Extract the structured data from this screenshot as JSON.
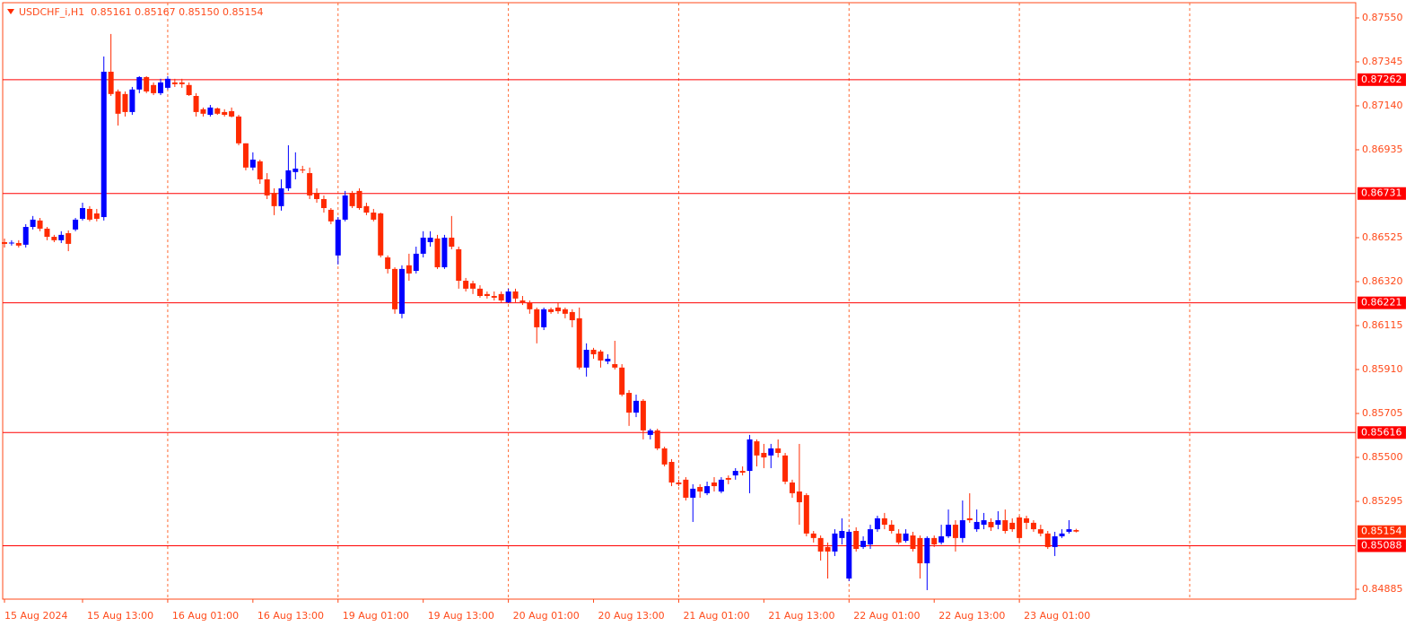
{
  "chart_data": {
    "type": "candlestick",
    "title": "USDCHF_i,H1  0.85161 0.85167 0.85150 0.85154",
    "categories": [
      "15 Aug 2024",
      null,
      null,
      null,
      null,
      null,
      null,
      null,
      null,
      null,
      null,
      "15 Aug 13:00",
      null,
      null,
      null,
      null,
      null,
      null,
      null,
      null,
      null,
      null,
      null,
      "16 Aug 01:00",
      null,
      null,
      null,
      null,
      null,
      null,
      null,
      null,
      null,
      null,
      null,
      "16 Aug 13:00",
      null,
      null,
      null,
      null,
      null,
      null,
      null,
      null,
      null,
      null,
      null,
      "19 Aug 01:00",
      null,
      null,
      null,
      null,
      null,
      null,
      null,
      null,
      null,
      null,
      null,
      "19 Aug 13:00",
      null,
      null,
      null,
      null,
      null,
      null,
      null,
      null,
      null,
      null,
      null,
      "20 Aug 01:00",
      null,
      null,
      null,
      null,
      null,
      null,
      null,
      null,
      null,
      null,
      null,
      "20 Aug 13:00",
      null,
      null,
      null,
      null,
      null,
      null,
      null,
      null,
      null,
      null,
      null,
      "21 Aug 01:00",
      null,
      null,
      null,
      null,
      null,
      null,
      null,
      null,
      null,
      null,
      null,
      "21 Aug 13:00",
      null,
      null,
      null,
      null,
      null,
      null,
      null,
      null,
      null,
      null,
      null,
      "22 Aug 01:00",
      null,
      null,
      null,
      null,
      null,
      null,
      null,
      null,
      null,
      null,
      null,
      "22 Aug 13:00",
      null,
      null,
      null,
      null,
      null,
      null,
      null,
      null,
      null,
      null,
      null,
      "23 Aug 01:00",
      null,
      null,
      null,
      null,
      null,
      null,
      null,
      null
    ],
    "open": [
      0.86504,
      0.865,
      0.865,
      0.86492,
      0.86575,
      0.86605,
      0.86567,
      0.86529,
      0.86513,
      0.86546,
      0.86563,
      0.86613,
      0.86659,
      0.86638,
      0.86621,
      0.87299,
      0.87207,
      0.87195,
      0.87111,
      0.87216,
      0.87274,
      0.87237,
      0.87199,
      0.87224,
      0.87249,
      0.87249,
      0.87237,
      0.87186,
      0.87124,
      0.87098,
      0.87128,
      0.87111,
      0.87115,
      0.8709,
      0.86965,
      0.86852,
      0.86881,
      0.86797,
      0.86734,
      0.86672,
      0.86755,
      0.86831,
      0.86843,
      0.86826,
      0.86734,
      0.86705,
      0.86655,
      0.86442,
      0.86609,
      0.86734,
      0.86743,
      0.86672,
      0.86642,
      0.86638,
      0.86433,
      0.86379,
      0.8617,
      0.86396,
      0.8637,
      0.8645,
      0.86504,
      0.86521,
      0.86387,
      0.86525,
      0.86471,
      0.86324,
      0.86312,
      0.86287,
      0.86262,
      0.86253,
      0.86262,
      0.86224,
      0.86274,
      0.86232,
      0.8622,
      0.86191,
      0.86107,
      0.86191,
      0.86199,
      0.86191,
      0.86178,
      0.86149,
      0.85919,
      0.86002,
      0.85994,
      0.85948,
      0.85935,
      0.85919,
      0.85801,
      0.85709,
      0.85764,
      0.85605,
      0.85626,
      0.85542,
      0.85479,
      0.85383,
      0.85396,
      0.85312,
      0.85362,
      0.85333,
      0.85383,
      0.85341,
      0.85404,
      0.85416,
      0.85437,
      0.85437,
      0.85575,
      0.85521,
      0.85509,
      0.85542,
      0.85509,
      0.85383,
      0.85341,
      0.85324,
      0.85145,
      0.85124,
      0.85082,
      0.85061,
      0.85124,
      0.84935,
      0.85157,
      0.85082,
      0.85094,
      0.85165,
      0.85216,
      0.85186,
      0.85145,
      0.85111,
      0.85136,
      0.85124,
      0.85006,
      0.85124,
      0.85103,
      0.85132,
      0.85186,
      0.85124,
      0.85216,
      0.85165,
      0.85186,
      0.85199,
      0.85186,
      0.85207,
      0.85195,
      0.8522,
      0.85216,
      0.85195,
      0.85165,
      0.85145,
      0.85082,
      0.85132,
      0.85153,
      0.85161
    ],
    "high": [
      0.86521,
      0.86513,
      0.86513,
      0.86588,
      0.86626,
      0.86617,
      0.86575,
      0.86538,
      0.86555,
      0.86559,
      0.86617,
      0.86688,
      0.86672,
      0.86659,
      0.8737,
      0.87475,
      0.87216,
      0.87207,
      0.87228,
      0.87278,
      0.87278,
      0.87249,
      0.87266,
      0.87278,
      0.87266,
      0.87266,
      0.87249,
      0.87199,
      0.87132,
      0.87144,
      0.87132,
      0.87124,
      0.87132,
      0.87098,
      0.86965,
      0.86923,
      0.86889,
      0.86826,
      0.86755,
      0.86797,
      0.86956,
      0.86923,
      0.8686,
      0.86852,
      0.86755,
      0.86722,
      0.86663,
      0.86621,
      0.86743,
      0.86743,
      0.86755,
      0.86688,
      0.86659,
      0.86642,
      0.86442,
      0.86387,
      0.86396,
      0.8645,
      0.86483,
      0.86555,
      0.86555,
      0.86538,
      0.86538,
      0.86626,
      0.86483,
      0.86337,
      0.86324,
      0.86303,
      0.86274,
      0.86274,
      0.86274,
      0.86287,
      0.86287,
      0.86253,
      0.86232,
      0.86199,
      0.86199,
      0.86199,
      0.86224,
      0.86199,
      0.86191,
      0.86199,
      0.86032,
      0.86011,
      0.86002,
      0.85981,
      0.86044,
      0.85935,
      0.85814,
      0.85793,
      0.85772,
      0.85634,
      0.85634,
      0.8555,
      0.85492,
      0.85396,
      0.85408,
      0.85375,
      0.85375,
      0.85387,
      0.85408,
      0.85408,
      0.85416,
      0.8545,
      0.85458,
      0.85605,
      0.85584,
      0.85563,
      0.85563,
      0.85584,
      0.85521,
      0.85396,
      0.85563,
      0.85333,
      0.85157,
      0.85136,
      0.85103,
      0.85165,
      0.85216,
      0.85165,
      0.85174,
      0.85132,
      0.85186,
      0.85228,
      0.85241,
      0.85207,
      0.85165,
      0.85165,
      0.85153,
      0.85136,
      0.85132,
      0.85136,
      0.85186,
      0.85257,
      0.85207,
      0.85299,
      0.85333,
      0.85257,
      0.85241,
      0.85216,
      0.85249,
      0.85257,
      0.85216,
      0.85228,
      0.85228,
      0.85207,
      0.85186,
      0.85157,
      0.85153,
      0.85165,
      0.85207,
      0.85167
    ],
    "low": [
      0.86479,
      0.86488,
      0.86479,
      0.86479,
      0.86563,
      0.86555,
      0.86513,
      0.86504,
      0.865,
      0.86462,
      0.86555,
      0.86605,
      0.86601,
      0.86601,
      0.86605,
      0.87186,
      0.87048,
      0.8709,
      0.87098,
      0.87199,
      0.87199,
      0.8719,
      0.8719,
      0.87216,
      0.87228,
      0.87224,
      0.87186,
      0.8709,
      0.8709,
      0.8709,
      0.87098,
      0.8709,
      0.87086,
      0.86956,
      0.86839,
      0.86839,
      0.86776,
      0.86705,
      0.8663,
      0.86651,
      0.86743,
      0.86797,
      0.86826,
      0.86705,
      0.86688,
      0.86642,
      0.86588,
      0.864,
      0.86601,
      0.86663,
      0.86655,
      0.8663,
      0.86601,
      0.86433,
      0.86358,
      0.8617,
      0.86149,
      0.86324,
      0.86358,
      0.86433,
      0.86483,
      0.86379,
      0.86379,
      0.86471,
      0.86287,
      0.86274,
      0.86262,
      0.86245,
      0.86241,
      0.86232,
      0.8622,
      0.8622,
      0.86224,
      0.86211,
      0.8617,
      0.86032,
      0.86094,
      0.8617,
      0.8617,
      0.86149,
      0.86107,
      0.8591,
      0.85877,
      0.8596,
      0.85919,
      0.85935,
      0.8591,
      0.85785,
      0.85647,
      0.85688,
      0.85584,
      0.85584,
      0.85534,
      0.85458,
      0.85366,
      0.85366,
      0.85299,
      0.85199,
      0.85312,
      0.85324,
      0.85341,
      0.85333,
      0.85375,
      0.85396,
      0.85416,
      0.85333,
      0.85458,
      0.8545,
      0.8545,
      0.855,
      0.85375,
      0.85312,
      0.85186,
      0.85132,
      0.85103,
      0.85019,
      0.84935,
      0.8504,
      0.85094,
      0.84923,
      0.85061,
      0.85073,
      0.85073,
      0.85153,
      0.85165,
      0.85145,
      0.85094,
      0.85103,
      0.85061,
      0.84935,
      0.84881,
      0.85082,
      0.85094,
      0.85124,
      0.85061,
      0.85103,
      0.85195,
      0.85153,
      0.85165,
      0.85157,
      0.85165,
      0.85145,
      0.85153,
      0.85103,
      0.85165,
      0.85153,
      0.85132,
      0.85073,
      0.8504,
      0.85124,
      0.85145,
      0.8515
    ],
    "close": [
      0.86496,
      0.86502,
      0.86488,
      0.86575,
      0.86609,
      0.86567,
      0.86529,
      0.86513,
      0.86538,
      0.86496,
      0.86609,
      0.86663,
      0.86609,
      0.86613,
      0.87299,
      0.87195,
      0.87103,
      0.87111,
      0.87216,
      0.87274,
      0.87207,
      0.87199,
      0.87249,
      0.87266,
      0.87241,
      0.87241,
      0.8719,
      0.87111,
      0.87103,
      0.87132,
      0.87103,
      0.87098,
      0.8709,
      0.86965,
      0.86852,
      0.86889,
      0.86797,
      0.86722,
      0.86672,
      0.86755,
      0.86839,
      0.86847,
      0.86839,
      0.86722,
      0.86705,
      0.86663,
      0.86601,
      0.86609,
      0.86722,
      0.86672,
      0.86663,
      0.86642,
      0.86609,
      0.86442,
      0.86379,
      0.86191,
      0.86379,
      0.86358,
      0.8645,
      0.86525,
      0.86525,
      0.86387,
      0.86525,
      0.86483,
      0.86324,
      0.86287,
      0.86287,
      0.86253,
      0.86253,
      0.86245,
      0.86232,
      0.86274,
      0.86241,
      0.86224,
      0.86191,
      0.86107,
      0.86191,
      0.86178,
      0.86182,
      0.8617,
      0.8614,
      0.85919,
      0.86002,
      0.85981,
      0.85952,
      0.8596,
      0.85919,
      0.85793,
      0.85709,
      0.85764,
      0.85626,
      0.85626,
      0.85542,
      0.85467,
      0.85383,
      0.85375,
      0.85312,
      0.85354,
      0.85341,
      0.85366,
      0.85366,
      0.85396,
      0.85396,
      0.85437,
      0.85429,
      0.85584,
      0.85509,
      0.855,
      0.85542,
      0.85521,
      0.85387,
      0.85333,
      0.85291,
      0.85145,
      0.85124,
      0.85061,
      0.85061,
      0.85145,
      0.85157,
      0.85153,
      0.85073,
      0.85111,
      0.85165,
      0.85216,
      0.85186,
      0.85157,
      0.85103,
      0.85145,
      0.85073,
      0.85006,
      0.85124,
      0.85094,
      0.85132,
      0.85186,
      0.85124,
      0.85207,
      0.85207,
      0.85199,
      0.85207,
      0.85174,
      0.85207,
      0.85157,
      0.85165,
      0.85124,
      0.85195,
      0.85165,
      0.85145,
      0.85082,
      0.85132,
      0.85145,
      0.85165,
      0.85154
    ],
    "up_color": "#0000ff",
    "down_color": "#ff2a00",
    "levels": [
      0.87262,
      0.86731,
      0.86221,
      0.85616,
      0.85088
    ],
    "level_color": "#ff0000",
    "ylim": [
      0.84839,
      0.87621
    ],
    "yticks": [
      {
        "value": 0.8755,
        "label": "0.87550"
      },
      0.87345,
      {
        "value": 0.8714,
        "label": "0.87140"
      },
      0.86935,
      0.86525,
      {
        "value": 0.8632,
        "label": "0.86320"
      },
      0.86115,
      {
        "value": 0.8591,
        "label": "0.85910"
      },
      0.85705,
      {
        "value": 0.855,
        "label": "0.85500"
      },
      0.85295,
      0.84885
    ],
    "grid": true
  }
}
